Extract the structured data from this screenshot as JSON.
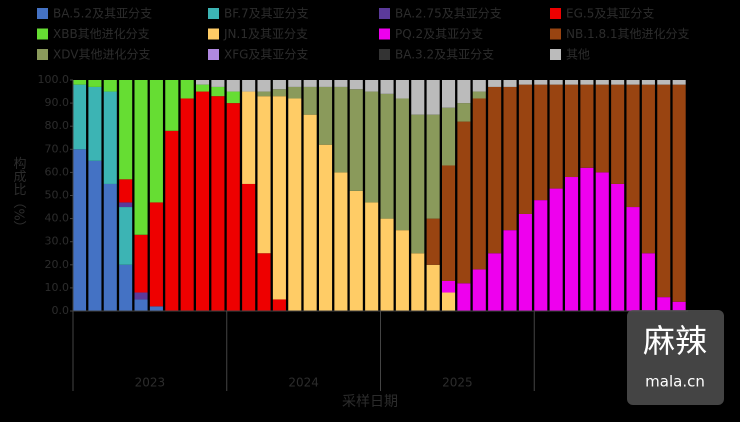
{
  "chart_data": {
    "type": "stacked_bar",
    "ylabel": "构成比（%）",
    "xlabel": "采样日期",
    "categories": [
      null,
      null,
      null,
      null,
      null,
      null,
      null,
      null,
      null,
      null,
      null,
      null,
      null,
      null,
      null,
      null,
      null,
      null,
      null,
      null,
      null,
      null,
      null,
      null,
      null,
      null,
      null,
      null,
      null,
      null,
      null,
      null,
      null,
      null,
      null,
      null,
      null,
      null,
      null,
      null
    ],
    "x_groups": [
      "2023",
      "2024",
      "2025",
      null
    ],
    "ylim": [
      0,
      100
    ],
    "yticks": [
      {
        "value": 0,
        "label": "0.0"
      },
      {
        "value": 10,
        "label": "10.0"
      },
      {
        "value": 20,
        "label": "20.0"
      },
      {
        "value": 30,
        "label": "30.0"
      },
      {
        "value": 40,
        "label": "40.0"
      },
      {
        "value": 50,
        "label": "50.0"
      },
      {
        "value": 60,
        "label": "60.0"
      },
      {
        "value": 70,
        "label": "70.0"
      },
      {
        "value": 80,
        "label": "80.0"
      },
      {
        "value": 90,
        "label": "90.0"
      },
      {
        "value": 100,
        "label": "100.0"
      }
    ],
    "series": [
      {
        "name": "BA.5.2及其亚分支",
        "color": "#4472c4",
        "values": [
          70,
          65,
          55,
          20,
          5,
          2,
          0,
          0,
          0,
          0,
          0,
          0,
          0,
          0,
          0,
          0,
          0,
          0,
          0,
          0,
          0,
          0,
          0,
          0,
          0,
          0,
          0,
          0,
          0,
          0,
          0,
          0,
          0,
          0,
          0,
          0,
          0,
          0,
          0,
          0
        ]
      },
      {
        "name": "BF.7及其亚分支",
        "color": "#3cb4b4",
        "values": [
          28,
          32,
          40,
          25,
          0,
          0,
          0,
          0,
          0,
          0,
          0,
          0,
          0,
          0,
          0,
          0,
          0,
          0,
          0,
          0,
          0,
          0,
          0,
          0,
          0,
          0,
          0,
          0,
          0,
          0,
          0,
          0,
          0,
          0,
          0,
          0,
          0,
          0,
          0,
          0
        ]
      },
      {
        "name": "BA.2.75及其亚分支",
        "color": "#5b3a9a",
        "values": [
          0,
          0,
          0,
          2,
          3,
          0,
          0,
          0,
          0,
          0,
          0,
          0,
          0,
          0,
          0,
          0,
          0,
          0,
          0,
          0,
          0,
          0,
          0,
          0,
          0,
          0,
          0,
          0,
          0,
          0,
          0,
          0,
          0,
          0,
          0,
          0,
          0,
          0,
          0,
          0
        ]
      },
      {
        "name": "EG.5及其亚分支",
        "color": "#ee0000",
        "values": [
          0,
          0,
          0,
          10,
          25,
          45,
          78,
          92,
          95,
          93,
          90,
          55,
          25,
          5,
          0,
          0,
          0,
          0,
          0,
          0,
          0,
          0,
          0,
          0,
          0,
          0,
          0,
          0,
          0,
          0,
          0,
          0,
          0,
          0,
          0,
          0,
          0,
          0,
          0,
          0
        ]
      },
      {
        "name": "XBB其他进化分支",
        "color": "#66dd33",
        "values": [
          2,
          3,
          5,
          43,
          67,
          53,
          22,
          8,
          3,
          4,
          5,
          0,
          0,
          0,
          0,
          0,
          0,
          0,
          0,
          0,
          0,
          0,
          0,
          0,
          0,
          0,
          0,
          0,
          0,
          0,
          0,
          0,
          0,
          0,
          0,
          0,
          0,
          0,
          0,
          0
        ]
      },
      {
        "name": "JN.1及其亚分支",
        "color": "#ffcc66",
        "values": [
          0,
          0,
          0,
          0,
          0,
          0,
          0,
          0,
          0,
          0,
          0,
          40,
          68,
          88,
          92,
          85,
          72,
          60,
          52,
          47,
          40,
          35,
          25,
          20,
          8,
          0,
          0,
          0,
          0,
          0,
          0,
          0,
          0,
          0,
          0,
          0,
          0,
          0,
          0,
          0
        ]
      },
      {
        "name": "PQ.2及其亚分支",
        "color": "#ee00ee",
        "values": [
          0,
          0,
          0,
          0,
          0,
          0,
          0,
          0,
          0,
          0,
          0,
          0,
          0,
          0,
          0,
          0,
          0,
          0,
          0,
          0,
          0,
          0,
          0,
          0,
          5,
          12,
          18,
          25,
          35,
          42,
          48,
          53,
          58,
          62,
          60,
          55,
          45,
          25,
          6,
          4
        ]
      },
      {
        "name": "NB.1.8.1其他进化分支",
        "color": "#994411",
        "values": [
          0,
          0,
          0,
          0,
          0,
          0,
          0,
          0,
          0,
          0,
          0,
          0,
          0,
          0,
          0,
          0,
          0,
          0,
          0,
          0,
          0,
          0,
          0,
          20,
          50,
          70,
          74,
          72,
          62,
          56,
          50,
          45,
          40,
          36,
          38,
          43,
          53,
          73,
          92,
          94
        ]
      },
      {
        "name": "XDV其他进化分支",
        "color": "#8a9a5b",
        "values": [
          0,
          0,
          0,
          0,
          0,
          0,
          0,
          0,
          0,
          0,
          0,
          0,
          2,
          3,
          5,
          12,
          25,
          37,
          44,
          48,
          54,
          57,
          60,
          45,
          25,
          8,
          3,
          0,
          0,
          0,
          0,
          0,
          0,
          0,
          0,
          0,
          0,
          0,
          0,
          0
        ]
      },
      {
        "name": "XFG及其亚分支",
        "color": "#b088e0",
        "values": [
          0,
          0,
          0,
          0,
          0,
          0,
          0,
          0,
          0,
          0,
          0,
          0,
          0,
          0,
          0,
          0,
          0,
          0,
          0,
          0,
          0,
          0,
          0,
          0,
          0,
          0,
          0,
          0,
          0,
          0,
          0,
          0,
          0,
          0,
          0,
          0,
          0,
          0,
          0,
          0
        ]
      },
      {
        "name": "BA.3.2及其亚分支",
        "color": "#333333",
        "values": [
          0,
          0,
          0,
          0,
          0,
          0,
          0,
          0,
          0,
          0,
          0,
          0,
          0,
          0,
          0,
          0,
          0,
          0,
          0,
          0,
          0,
          0,
          0,
          0,
          0,
          0,
          0,
          0,
          0,
          0,
          0,
          0,
          0,
          0,
          0,
          0,
          0,
          0,
          0,
          0
        ]
      },
      {
        "name": "其他",
        "color": "#bbbbbb",
        "values": [
          0,
          0,
          0,
          0,
          0,
          0,
          0,
          0,
          2,
          3,
          5,
          5,
          5,
          4,
          3,
          3,
          3,
          3,
          4,
          5,
          6,
          8,
          15,
          15,
          12,
          10,
          5,
          3,
          3,
          2,
          2,
          2,
          2,
          2,
          2,
          2,
          2,
          2,
          2,
          2
        ]
      }
    ]
  },
  "watermark": {
    "title": "麻辣",
    "site": "mala.cn"
  }
}
